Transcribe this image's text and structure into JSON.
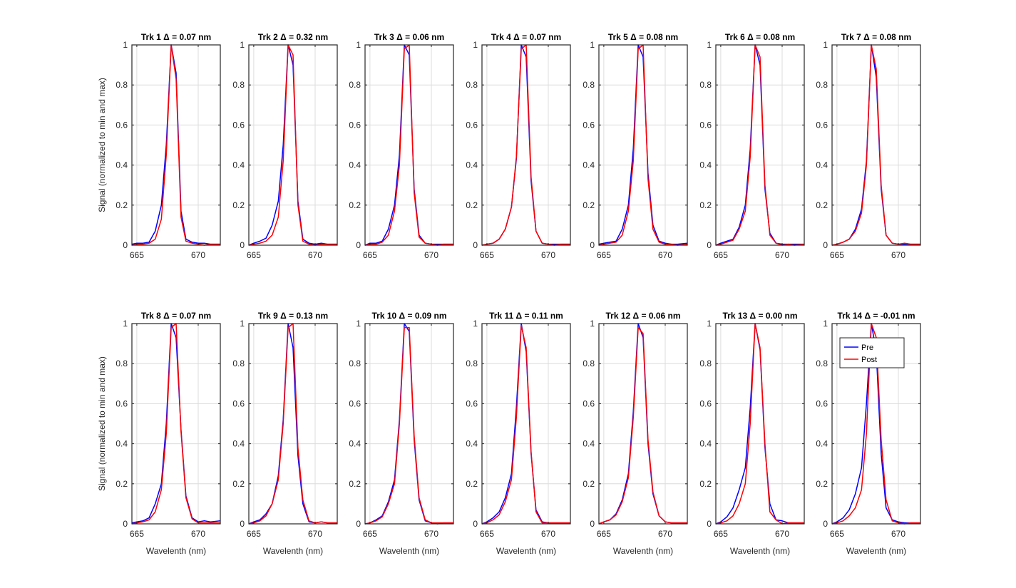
{
  "figure": {
    "ylabel": "Signal (normalized to min and max)",
    "xlabel": "Wavelenth (nm)",
    "xticks": [
      665,
      670
    ],
    "yticks": [
      0,
      0.2,
      0.4,
      0.6,
      0.8,
      1
    ],
    "ytick_labels": [
      "0",
      "0.2",
      "0.4",
      "0.6",
      "0.8",
      "1"
    ],
    "xlim": [
      664.6,
      671.8
    ],
    "ylim": [
      0,
      1
    ]
  },
  "legend": {
    "placement": "inside-top-right of last panel",
    "entries": [
      {
        "label": "Pre",
        "color": "#0000ff"
      },
      {
        "label": "Post",
        "color": "#ff0000"
      }
    ]
  },
  "chart_data": [
    {
      "type": "line",
      "title": "Trk 1 Δ = 0.07 nm",
      "xlabel": "",
      "ylabel": "Signal (normalized to min and max)",
      "xlim": [
        664.6,
        671.8
      ],
      "ylim": [
        0,
        1
      ],
      "grid": true,
      "x": [
        664.6,
        665.0,
        665.5,
        666.0,
        666.5,
        667.0,
        667.4,
        667.8,
        668.2,
        668.6,
        669.0,
        669.5,
        670.0,
        670.5,
        671.0,
        671.8
      ],
      "series": [
        {
          "name": "Pre",
          "color": "#0000ff",
          "values": [
            0.005,
            0.01,
            0.01,
            0.015,
            0.07,
            0.2,
            0.5,
            1.0,
            0.86,
            0.17,
            0.03,
            0.015,
            0.01,
            0.01,
            0.005,
            0.005
          ]
        },
        {
          "name": "Post",
          "color": "#ff0000",
          "values": [
            0.0,
            0.005,
            0.005,
            0.01,
            0.03,
            0.13,
            0.45,
            1.0,
            0.83,
            0.14,
            0.02,
            0.01,
            0.005,
            0.0,
            0.005,
            0.005
          ]
        }
      ]
    },
    {
      "type": "line",
      "title": "Trk 2 Δ = 0.32 nm",
      "xlabel": "",
      "ylabel": "",
      "xlim": [
        664.6,
        671.8
      ],
      "ylim": [
        0,
        1
      ],
      "grid": true,
      "x": [
        664.6,
        665.0,
        665.5,
        666.0,
        666.5,
        667.0,
        667.4,
        667.8,
        668.2,
        668.6,
        669.0,
        669.5,
        670.0,
        670.5,
        671.0,
        671.8
      ],
      "series": [
        {
          "name": "Pre",
          "color": "#0000ff",
          "values": [
            0.0,
            0.01,
            0.02,
            0.035,
            0.1,
            0.22,
            0.5,
            1.0,
            0.9,
            0.22,
            0.03,
            0.01,
            0.005,
            0.01,
            0.005,
            0.005
          ]
        },
        {
          "name": "Post",
          "color": "#ff0000",
          "values": [
            0.0,
            0.005,
            0.01,
            0.02,
            0.05,
            0.14,
            0.42,
            1.0,
            0.95,
            0.2,
            0.02,
            0.005,
            0.0,
            0.005,
            0.005,
            0.005
          ]
        }
      ]
    },
    {
      "type": "line",
      "title": "Trk 3 Δ = 0.06 nm",
      "xlabel": "",
      "ylabel": "",
      "xlim": [
        664.6,
        671.8
      ],
      "ylim": [
        0,
        1
      ],
      "grid": true,
      "x": [
        664.6,
        665.0,
        665.5,
        666.0,
        666.5,
        667.0,
        667.4,
        667.8,
        668.2,
        668.6,
        669.0,
        669.5,
        670.0,
        670.5,
        671.0,
        671.8
      ],
      "series": [
        {
          "name": "Pre",
          "color": "#0000ff",
          "values": [
            0.0,
            0.01,
            0.01,
            0.02,
            0.08,
            0.2,
            0.45,
            1.0,
            0.95,
            0.28,
            0.05,
            0.01,
            0.005,
            0.005,
            0.005,
            0.005
          ]
        },
        {
          "name": "Post",
          "color": "#ff0000",
          "values": [
            0.0,
            0.005,
            0.005,
            0.015,
            0.05,
            0.17,
            0.4,
            0.98,
            1.0,
            0.26,
            0.04,
            0.01,
            0.005,
            0.0,
            0.005,
            0.005
          ]
        }
      ]
    },
    {
      "type": "line",
      "title": "Trk 4 Δ = 0.07 nm",
      "xlabel": "",
      "ylabel": "",
      "xlim": [
        664.6,
        671.8
      ],
      "ylim": [
        0,
        1
      ],
      "grid": true,
      "x": [
        664.6,
        665.0,
        665.5,
        666.0,
        666.5,
        667.0,
        667.4,
        667.8,
        668.2,
        668.6,
        669.0,
        669.5,
        670.0,
        670.5,
        671.0,
        671.8
      ],
      "series": [
        {
          "name": "Pre",
          "color": "#0000ff",
          "values": [
            0.0,
            0.005,
            0.01,
            0.03,
            0.08,
            0.19,
            0.43,
            1.0,
            0.94,
            0.32,
            0.07,
            0.01,
            0.005,
            0.005,
            0.005,
            0.005
          ]
        },
        {
          "name": "Post",
          "color": "#ff0000",
          "values": [
            0.0,
            0.005,
            0.01,
            0.03,
            0.08,
            0.19,
            0.44,
            0.98,
            1.0,
            0.34,
            0.07,
            0.01,
            0.005,
            0.0,
            0.005,
            0.005
          ]
        }
      ]
    },
    {
      "type": "line",
      "title": "Trk 5 Δ = 0.08 nm",
      "xlabel": "",
      "ylabel": "",
      "xlim": [
        664.6,
        671.8
      ],
      "ylim": [
        0,
        1
      ],
      "grid": true,
      "x": [
        664.6,
        665.0,
        665.5,
        666.0,
        666.5,
        667.0,
        667.4,
        667.8,
        668.2,
        668.6,
        669.0,
        669.5,
        670.0,
        670.5,
        671.0,
        671.8
      ],
      "series": [
        {
          "name": "Pre",
          "color": "#0000ff",
          "values": [
            0.005,
            0.01,
            0.015,
            0.02,
            0.08,
            0.2,
            0.48,
            1.0,
            0.94,
            0.36,
            0.1,
            0.02,
            0.01,
            0.005,
            0.005,
            0.01
          ]
        },
        {
          "name": "Post",
          "color": "#ff0000",
          "values": [
            0.0,
            0.005,
            0.01,
            0.015,
            0.05,
            0.17,
            0.42,
            0.98,
            1.0,
            0.33,
            0.08,
            0.015,
            0.005,
            0.005,
            0.0,
            0.005
          ]
        }
      ]
    },
    {
      "type": "line",
      "title": "Trk 6 Δ = 0.08 nm",
      "xlabel": "",
      "ylabel": "",
      "xlim": [
        664.6,
        671.8
      ],
      "ylim": [
        0,
        1
      ],
      "grid": true,
      "x": [
        664.6,
        665.0,
        665.5,
        666.0,
        666.5,
        667.0,
        667.4,
        667.8,
        668.2,
        668.6,
        669.0,
        669.5,
        670.0,
        670.5,
        671.0,
        671.8
      ],
      "series": [
        {
          "name": "Pre",
          "color": "#0000ff",
          "values": [
            0.0,
            0.01,
            0.02,
            0.03,
            0.09,
            0.2,
            0.48,
            1.0,
            0.9,
            0.28,
            0.06,
            0.01,
            0.005,
            0.005,
            0.005,
            0.005
          ]
        },
        {
          "name": "Post",
          "color": "#ff0000",
          "values": [
            0.0,
            0.005,
            0.015,
            0.025,
            0.08,
            0.17,
            0.44,
            1.0,
            0.94,
            0.3,
            0.05,
            0.01,
            0.0,
            0.005,
            0.0,
            0.005
          ]
        }
      ]
    },
    {
      "type": "line",
      "title": "Trk 7 Δ = 0.08 nm",
      "xlabel": "",
      "ylabel": "",
      "xlim": [
        664.6,
        671.8
      ],
      "ylim": [
        0,
        1
      ],
      "grid": true,
      "x": [
        664.6,
        665.0,
        665.5,
        666.0,
        666.5,
        667.0,
        667.4,
        667.8,
        668.2,
        668.6,
        669.0,
        669.5,
        670.0,
        670.5,
        671.0,
        671.8
      ],
      "series": [
        {
          "name": "Pre",
          "color": "#0000ff",
          "values": [
            0.0,
            0.005,
            0.015,
            0.03,
            0.08,
            0.18,
            0.42,
            1.0,
            0.84,
            0.28,
            0.05,
            0.01,
            0.005,
            0.005,
            0.005,
            0.005
          ]
        },
        {
          "name": "Post",
          "color": "#ff0000",
          "values": [
            0.0,
            0.005,
            0.015,
            0.03,
            0.07,
            0.16,
            0.4,
            1.0,
            0.88,
            0.3,
            0.05,
            0.01,
            0.005,
            0.01,
            0.005,
            0.005
          ]
        }
      ]
    },
    {
      "type": "line",
      "title": "Trk 8 Δ = 0.07 nm",
      "xlabel": "Wavelenth (nm)",
      "ylabel": "Signal (normalized to min and max)",
      "xlim": [
        664.6,
        671.8
      ],
      "ylim": [
        0,
        1
      ],
      "grid": true,
      "x": [
        664.6,
        665.0,
        665.5,
        666.0,
        666.5,
        667.0,
        667.4,
        667.8,
        668.2,
        668.6,
        669.0,
        669.5,
        670.0,
        670.5,
        671.0,
        671.8
      ],
      "series": [
        {
          "name": "Pre",
          "color": "#0000ff",
          "values": [
            0.005,
            0.01,
            0.015,
            0.03,
            0.1,
            0.2,
            0.5,
            1.0,
            0.93,
            0.47,
            0.14,
            0.03,
            0.01,
            0.015,
            0.01,
            0.015
          ]
        },
        {
          "name": "Post",
          "color": "#ff0000",
          "values": [
            0.0,
            0.005,
            0.01,
            0.02,
            0.06,
            0.17,
            0.45,
            0.98,
            1.0,
            0.46,
            0.13,
            0.025,
            0.005,
            0.005,
            0.005,
            0.005
          ]
        }
      ]
    },
    {
      "type": "line",
      "title": "Trk 9 Δ = 0.13 nm",
      "xlabel": "Wavelenth (nm)",
      "ylabel": "",
      "xlim": [
        664.6,
        671.8
      ],
      "ylim": [
        0,
        1
      ],
      "grid": true,
      "x": [
        664.6,
        665.0,
        665.5,
        666.0,
        666.5,
        667.0,
        667.4,
        667.8,
        668.2,
        668.6,
        669.0,
        669.5,
        670.0,
        670.5,
        671.0,
        671.8
      ],
      "series": [
        {
          "name": "Pre",
          "color": "#0000ff",
          "values": [
            0.0,
            0.01,
            0.02,
            0.05,
            0.1,
            0.24,
            0.52,
            1.0,
            0.88,
            0.34,
            0.1,
            0.01,
            0.005,
            0.01,
            0.005,
            0.005
          ]
        },
        {
          "name": "Post",
          "color": "#ff0000",
          "values": [
            0.0,
            0.005,
            0.015,
            0.04,
            0.1,
            0.22,
            0.5,
            0.98,
            1.0,
            0.38,
            0.12,
            0.015,
            0.005,
            0.01,
            0.005,
            0.005
          ]
        }
      ]
    },
    {
      "type": "line",
      "title": "Trk 10 Δ = 0.09 nm",
      "xlabel": "Wavelenth (nm)",
      "ylabel": "",
      "xlim": [
        664.6,
        671.8
      ],
      "ylim": [
        0,
        1
      ],
      "grid": true,
      "x": [
        664.6,
        665.0,
        665.5,
        666.0,
        666.5,
        667.0,
        667.4,
        667.8,
        668.2,
        668.6,
        669.0,
        669.5,
        670.0,
        670.5,
        671.0,
        671.8
      ],
      "series": [
        {
          "name": "Pre",
          "color": "#0000ff",
          "values": [
            0.0,
            0.005,
            0.02,
            0.04,
            0.11,
            0.22,
            0.52,
            1.0,
            0.96,
            0.42,
            0.12,
            0.015,
            0.005,
            0.0,
            0.005,
            0.005
          ]
        },
        {
          "name": "Post",
          "color": "#ff0000",
          "values": [
            0.0,
            0.005,
            0.015,
            0.035,
            0.1,
            0.2,
            0.5,
            0.98,
            0.98,
            0.44,
            0.13,
            0.02,
            0.005,
            0.005,
            0.005,
            0.005
          ]
        }
      ]
    },
    {
      "type": "line",
      "title": "Trk 11 Δ = 0.11 nm",
      "xlabel": "Wavelenth (nm)",
      "ylabel": "",
      "xlim": [
        664.6,
        671.8
      ],
      "ylim": [
        0,
        1
      ],
      "grid": true,
      "x": [
        664.6,
        665.0,
        665.5,
        666.0,
        666.5,
        667.0,
        667.4,
        667.8,
        668.2,
        668.6,
        669.0,
        669.5,
        670.0,
        670.5,
        671.0,
        671.8
      ],
      "series": [
        {
          "name": "Pre",
          "color": "#0000ff",
          "values": [
            0.0,
            0.01,
            0.03,
            0.06,
            0.13,
            0.25,
            0.58,
            1.0,
            0.86,
            0.35,
            0.07,
            0.01,
            0.005,
            0.005,
            0.005,
            0.005
          ]
        },
        {
          "name": "Post",
          "color": "#ff0000",
          "values": [
            0.0,
            0.005,
            0.02,
            0.045,
            0.11,
            0.22,
            0.53,
            0.99,
            0.88,
            0.36,
            0.06,
            0.005,
            0.005,
            0.005,
            0.005,
            0.005
          ]
        }
      ]
    },
    {
      "type": "line",
      "title": "Trk 12 Δ = 0.06 nm",
      "xlabel": "Wavelenth (nm)",
      "ylabel": "",
      "xlim": [
        664.6,
        671.8
      ],
      "ylim": [
        0,
        1
      ],
      "grid": true,
      "x": [
        664.6,
        665.0,
        665.5,
        666.0,
        666.5,
        667.0,
        667.4,
        667.8,
        668.2,
        668.6,
        669.0,
        669.5,
        670.0,
        670.5,
        671.0,
        671.8
      ],
      "series": [
        {
          "name": "Pre",
          "color": "#0000ff",
          "values": [
            0.0,
            0.01,
            0.02,
            0.05,
            0.12,
            0.25,
            0.56,
            1.0,
            0.93,
            0.4,
            0.15,
            0.04,
            0.01,
            0.005,
            0.005,
            0.005
          ]
        },
        {
          "name": "Post",
          "color": "#ff0000",
          "values": [
            0.0,
            0.01,
            0.02,
            0.045,
            0.11,
            0.23,
            0.53,
            0.98,
            0.95,
            0.42,
            0.16,
            0.04,
            0.01,
            0.005,
            0.005,
            0.005
          ]
        }
      ]
    },
    {
      "type": "line",
      "title": "Trk 13 Δ = 0.00 nm",
      "xlabel": "Wavelenth (nm)",
      "ylabel": "",
      "xlim": [
        664.6,
        671.8
      ],
      "ylim": [
        0,
        1
      ],
      "grid": true,
      "x": [
        664.6,
        665.0,
        665.5,
        666.0,
        666.5,
        667.0,
        667.4,
        667.8,
        668.2,
        668.6,
        669.0,
        669.5,
        670.0,
        670.5,
        671.0,
        671.8
      ],
      "series": [
        {
          "name": "Pre",
          "color": "#0000ff",
          "values": [
            0.0,
            0.01,
            0.035,
            0.08,
            0.17,
            0.28,
            0.58,
            1.0,
            0.87,
            0.38,
            0.1,
            0.02,
            0.015,
            0.005,
            0.005,
            0.005
          ]
        },
        {
          "name": "Post",
          "color": "#ff0000",
          "values": [
            0.0,
            0.005,
            0.015,
            0.04,
            0.1,
            0.2,
            0.5,
            1.0,
            0.88,
            0.4,
            0.06,
            0.02,
            0.0,
            0.005,
            0.005,
            0.005
          ]
        }
      ]
    },
    {
      "type": "line",
      "title": "Trk 14 Δ = -0.01 nm",
      "xlabel": "Wavelenth (nm)",
      "ylabel": "",
      "xlim": [
        664.6,
        671.8
      ],
      "ylim": [
        0,
        1
      ],
      "grid": true,
      "x": [
        664.6,
        665.0,
        665.5,
        666.0,
        666.5,
        667.0,
        667.4,
        667.8,
        668.2,
        668.6,
        669.0,
        669.5,
        670.0,
        670.5,
        671.0,
        671.8
      ],
      "series": [
        {
          "name": "Pre",
          "color": "#0000ff",
          "values": [
            0.0,
            0.01,
            0.03,
            0.07,
            0.15,
            0.28,
            0.6,
            1.0,
            0.86,
            0.35,
            0.08,
            0.02,
            0.01,
            0.005,
            0.005,
            0.005
          ]
        },
        {
          "name": "Post",
          "color": "#ff0000",
          "values": [
            0.0,
            0.005,
            0.015,
            0.04,
            0.08,
            0.17,
            0.45,
            1.0,
            0.93,
            0.42,
            0.12,
            0.015,
            0.005,
            0.0,
            0.005,
            0.005
          ]
        }
      ]
    }
  ]
}
